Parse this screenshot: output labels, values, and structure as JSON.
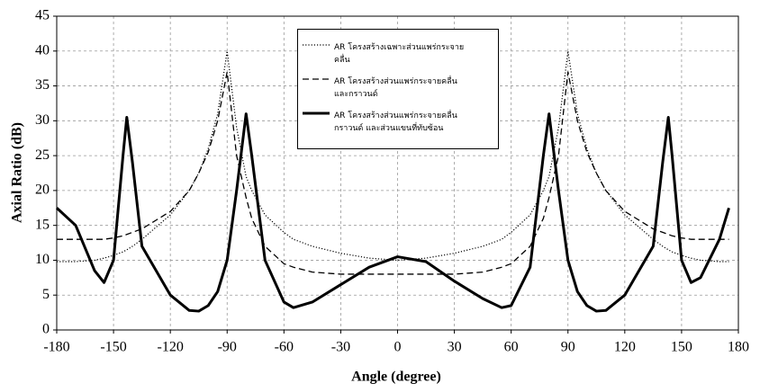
{
  "chart_data": {
    "type": "line",
    "x_label": "Angle (degree)",
    "y_label": "Axial Ratio (dB)",
    "x": [
      -180,
      -170,
      -160,
      -155,
      -150,
      -145,
      -143,
      -140,
      -135,
      -120,
      -110,
      -105,
      -100,
      -95,
      -90,
      -85,
      -80,
      -77,
      -70,
      -60,
      -55,
      -45,
      -30,
      -15,
      0,
      15,
      30,
      45,
      55,
      60,
      70,
      77,
      80,
      85,
      90,
      95,
      100,
      105,
      110,
      120,
      135,
      140,
      143,
      145,
      150,
      155,
      160,
      170,
      175
    ],
    "series": [
      {
        "name": "AR โครงสร้างเฉพาะส่วนแพร่กระจายคลื่น",
        "color": "#000000",
        "line_style": "dotted",
        "values": [
          9.8,
          9.8,
          10,
          10.3,
          10.7,
          11.2,
          11.5,
          12,
          13,
          16.5,
          20,
          22.5,
          26,
          31,
          40,
          29,
          22,
          20,
          16.5,
          14,
          13,
          12,
          11,
          10.3,
          10,
          10.3,
          11,
          12,
          13,
          14,
          16.5,
          20,
          22,
          29,
          40,
          31,
          26,
          22.5,
          20,
          16.5,
          13,
          12,
          11.5,
          11.2,
          10.7,
          10.3,
          10,
          9.8,
          9.8
        ]
      },
      {
        "name": "AR โครงสร้างส่วนแพร่กระจายคลื่นและกราวนด์",
        "color": "#000000",
        "line_style": "dashed",
        "values": [
          13,
          13,
          13,
          13,
          13.2,
          13.5,
          13.7,
          14,
          14.5,
          17,
          20,
          22.5,
          25.5,
          30,
          37,
          25,
          19,
          16,
          12,
          9.5,
          9,
          8.3,
          8,
          8,
          8,
          8,
          8,
          8.3,
          9,
          9.5,
          12,
          16,
          19,
          25,
          37,
          30,
          25.5,
          22.5,
          20,
          17,
          14.5,
          14,
          13.7,
          13.5,
          13.2,
          13,
          13,
          13,
          13
        ]
      },
      {
        "name": "AR โครงสร้างส่วนแพร่กระจายคลื่นกราวนด์ และส่วนแขนที่ทับซ้อน",
        "color": "#000000",
        "line_style": "solid",
        "values": [
          17.5,
          15,
          8.5,
          6.8,
          10,
          25,
          30.5,
          24,
          12,
          5,
          2.8,
          2.7,
          3.5,
          5.5,
          10,
          20,
          31,
          25,
          10,
          4,
          3.2,
          4,
          6.5,
          9,
          10.5,
          9.8,
          7,
          4.5,
          3.2,
          3.5,
          9,
          25,
          31,
          20,
          10,
          5.5,
          3.5,
          2.7,
          2.8,
          5,
          12,
          24,
          30.5,
          25,
          10,
          6.8,
          7.5,
          13,
          17.5
        ]
      }
    ],
    "xlim": [
      -180,
      180
    ],
    "xticks": [
      -180,
      -150,
      -120,
      -90,
      -60,
      -30,
      0,
      30,
      60,
      90,
      120,
      150,
      180
    ],
    "ylim": [
      0,
      45
    ],
    "yticks": [
      0,
      5,
      10,
      15,
      20,
      25,
      30,
      35,
      40,
      45
    ],
    "grid": true
  }
}
